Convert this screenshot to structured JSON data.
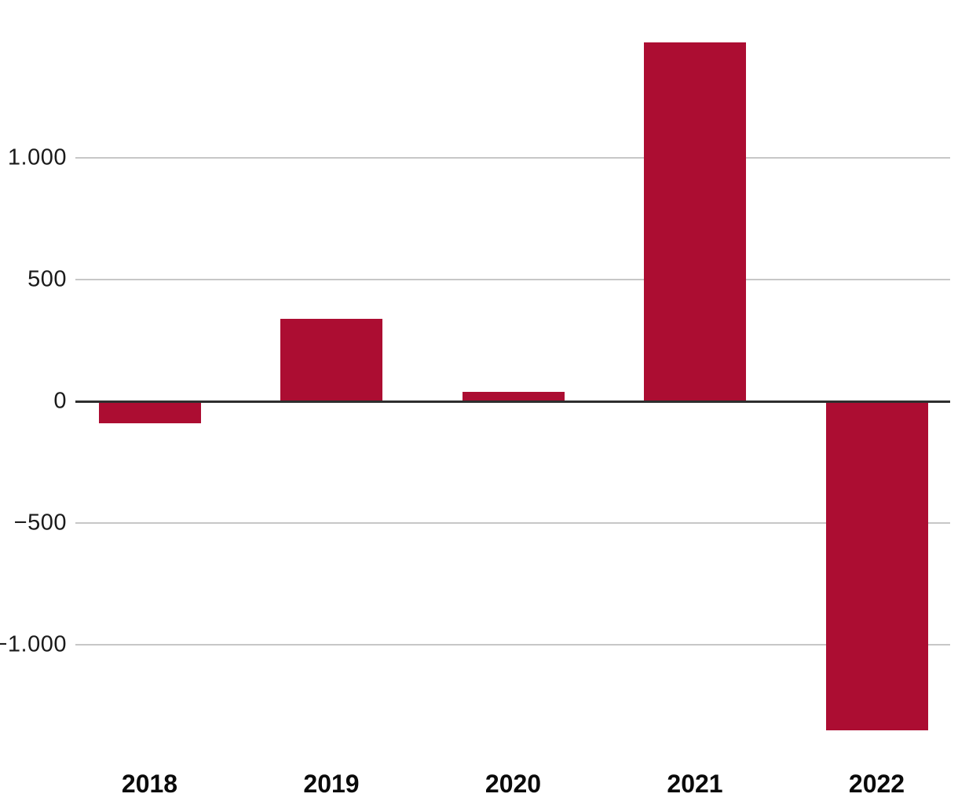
{
  "chart_data": {
    "type": "bar",
    "title": "",
    "xlabel": "",
    "ylabel": "",
    "categories": [
      "2018",
      "2019",
      "2020",
      "2021",
      "2022"
    ],
    "values": [
      -90,
      340,
      40,
      1475,
      -1350
    ],
    "yticks": [
      {
        "value": 1000,
        "label": "1.000"
      },
      {
        "value": 500,
        "label": "500"
      },
      {
        "value": 0,
        "label": "0"
      },
      {
        "value": -500,
        "label": "−500"
      },
      {
        "value": -1000,
        "label": "−1.000"
      }
    ],
    "ylim": [
      -1650,
      1650
    ],
    "grid": true,
    "legend": false,
    "number_format": "european-thousands-dot",
    "colors": {
      "bar": "#ac0d32",
      "gridline": "#c7c7c7",
      "zero_line": "#2e2e2e",
      "tick_label": "#1a1a1a",
      "background": "#ffffff"
    }
  }
}
